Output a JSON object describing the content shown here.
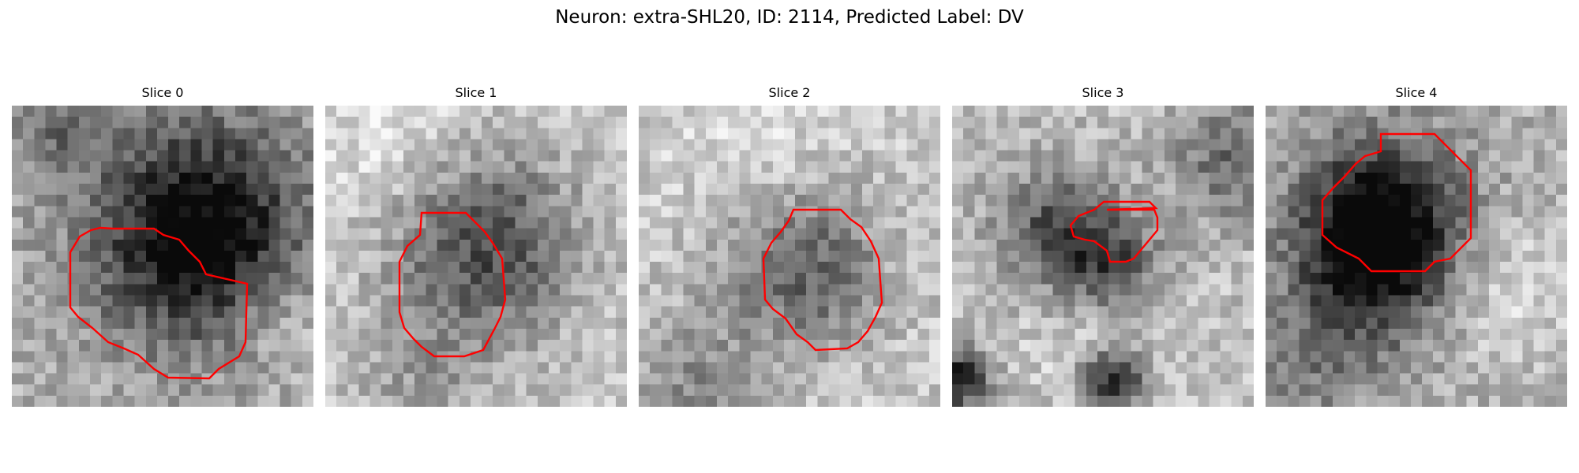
{
  "figure": {
    "title": "Neuron: extra-SHL20, ID: 2114, Predicted Label: DV"
  },
  "slices": [
    {
      "title": "Slice 0"
    },
    {
      "title": "Slice 1"
    },
    {
      "title": "Slice 2"
    },
    {
      "title": "Slice 3"
    },
    {
      "title": "Slice 4"
    }
  ],
  "colors": {
    "contour": "#ff0000"
  }
}
